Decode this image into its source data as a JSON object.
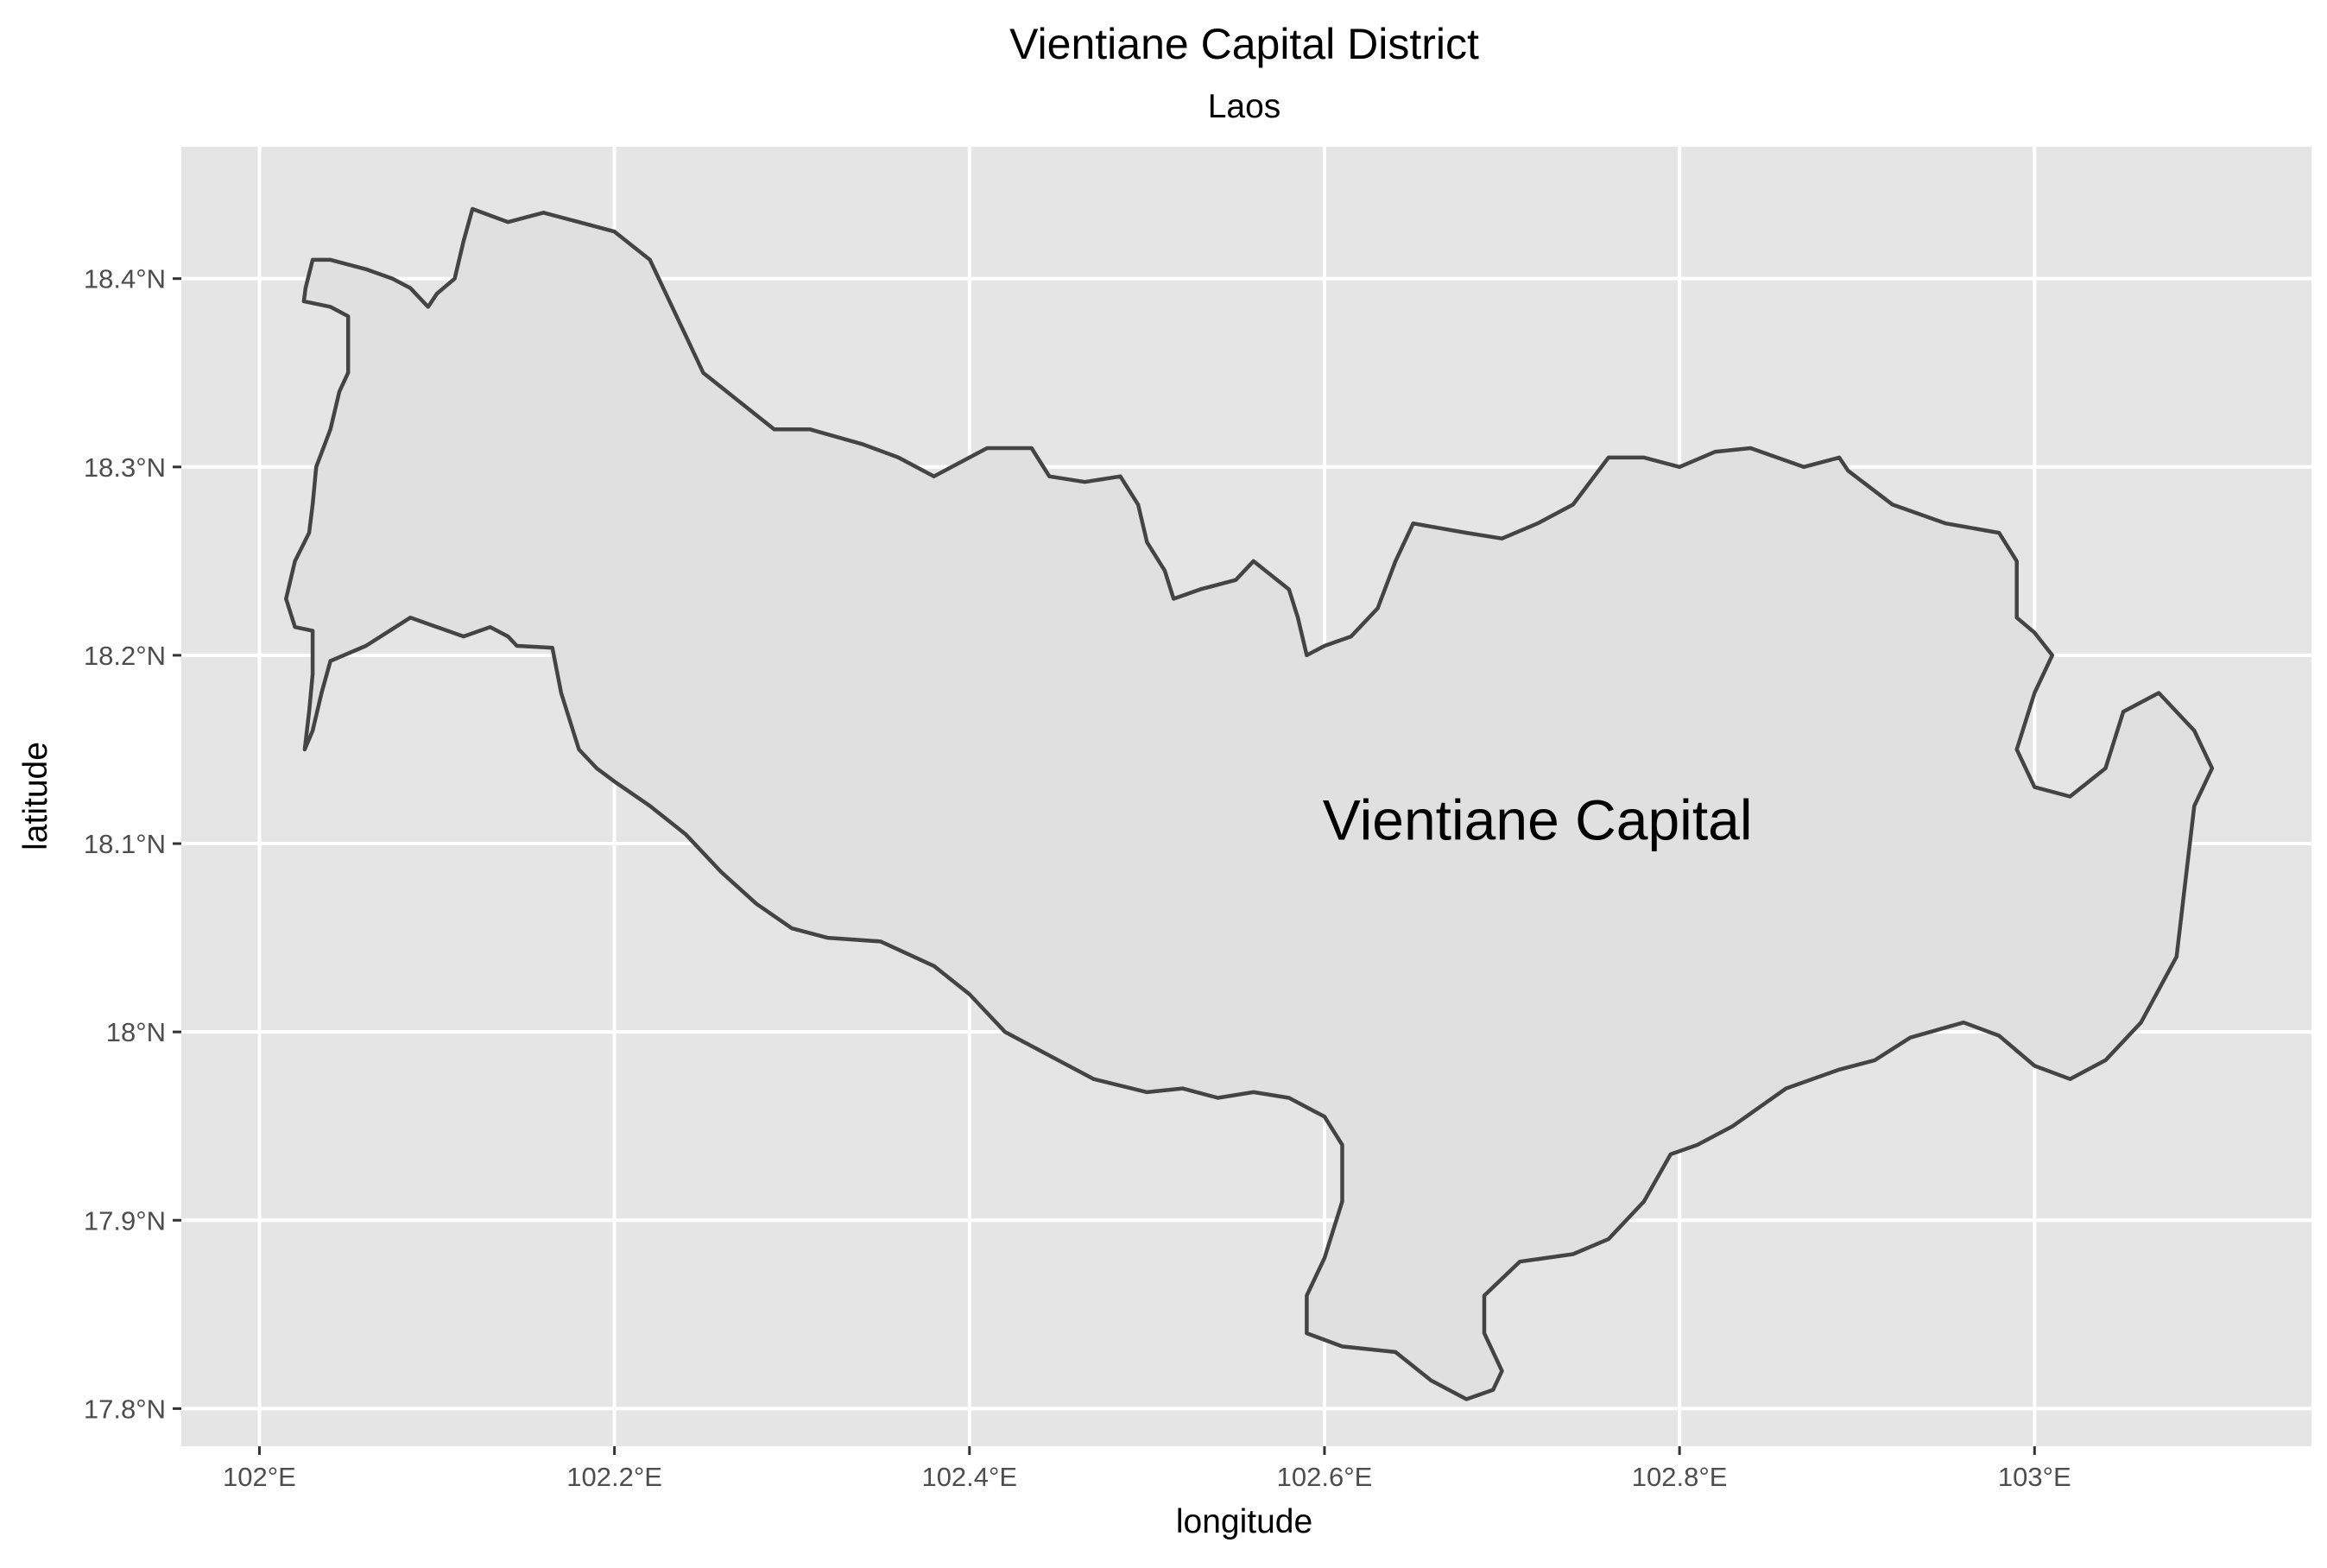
{
  "map": {
    "title": "Vientiane Capital District",
    "subtitle": "Laos",
    "x_axis_label": "longitude",
    "y_axis_label": "latitude",
    "panel_background": "#e5e5e5",
    "grid_color": "#ffffff",
    "region": {
      "label": "Vientiane Capital",
      "fill": "#e0e0e0",
      "stroke": "#444444",
      "label_position": [
        102.72,
        18.11
      ],
      "boundary": [
        [
          102.0255,
          18.15
        ],
        [
          102.03,
          18.16
        ],
        [
          102.035,
          18.18
        ],
        [
          102.04,
          18.197
        ],
        [
          102.06,
          18.205
        ],
        [
          102.085,
          18.22
        ],
        [
          102.1,
          18.215
        ],
        [
          102.115,
          18.21
        ],
        [
          102.13,
          18.215
        ],
        [
          102.14,
          18.21
        ],
        [
          102.145,
          18.205
        ],
        [
          102.165,
          18.204
        ],
        [
          102.17,
          18.18
        ],
        [
          102.18,
          18.15
        ],
        [
          102.19,
          18.14
        ],
        [
          102.2,
          18.133
        ],
        [
          102.22,
          18.12
        ],
        [
          102.24,
          18.105
        ],
        [
          102.26,
          18.085
        ],
        [
          102.28,
          18.068
        ],
        [
          102.3,
          18.055
        ],
        [
          102.32,
          18.05
        ],
        [
          102.35,
          18.048
        ],
        [
          102.38,
          18.035
        ],
        [
          102.4,
          18.02
        ],
        [
          102.42,
          18.0
        ],
        [
          102.44,
          17.99
        ],
        [
          102.47,
          17.975
        ],
        [
          102.5,
          17.968
        ],
        [
          102.52,
          17.97
        ],
        [
          102.54,
          17.965
        ],
        [
          102.56,
          17.968
        ],
        [
          102.58,
          17.965
        ],
        [
          102.6,
          17.955
        ],
        [
          102.61,
          17.94
        ],
        [
          102.61,
          17.91
        ],
        [
          102.6,
          17.88
        ],
        [
          102.59,
          17.86
        ],
        [
          102.59,
          17.84
        ],
        [
          102.61,
          17.833
        ],
        [
          102.64,
          17.83
        ],
        [
          102.66,
          17.815
        ],
        [
          102.68,
          17.805
        ],
        [
          102.695,
          17.81
        ],
        [
          102.7,
          17.82
        ],
        [
          102.69,
          17.84
        ],
        [
          102.69,
          17.86
        ],
        [
          102.71,
          17.878
        ],
        [
          102.74,
          17.882
        ],
        [
          102.76,
          17.89
        ],
        [
          102.78,
          17.91
        ],
        [
          102.795,
          17.935
        ],
        [
          102.81,
          17.94
        ],
        [
          102.83,
          17.95
        ],
        [
          102.86,
          17.97
        ],
        [
          102.89,
          17.98
        ],
        [
          102.91,
          17.985
        ],
        [
          102.93,
          17.997
        ],
        [
          102.96,
          18.005
        ],
        [
          102.98,
          17.998
        ],
        [
          103.0,
          17.982
        ],
        [
          103.02,
          17.975
        ],
        [
          103.04,
          17.985
        ],
        [
          103.06,
          18.005
        ],
        [
          103.08,
          18.04
        ],
        [
          103.085,
          18.08
        ],
        [
          103.09,
          18.12
        ],
        [
          103.1,
          18.14
        ],
        [
          103.09,
          18.16
        ],
        [
          103.07,
          18.18
        ],
        [
          103.05,
          18.17
        ],
        [
          103.04,
          18.14
        ],
        [
          103.02,
          18.125
        ],
        [
          103.0,
          18.13
        ],
        [
          102.99,
          18.15
        ],
        [
          103.0,
          18.18
        ],
        [
          103.01,
          18.2
        ],
        [
          103.0,
          18.212
        ],
        [
          102.99,
          18.22
        ],
        [
          102.99,
          18.25
        ],
        [
          102.98,
          18.265
        ],
        [
          102.95,
          18.27
        ],
        [
          102.92,
          18.28
        ],
        [
          102.895,
          18.298
        ],
        [
          102.89,
          18.305
        ],
        [
          102.87,
          18.3
        ],
        [
          102.84,
          18.31
        ],
        [
          102.82,
          18.308
        ],
        [
          102.8,
          18.3
        ],
        [
          102.78,
          18.305
        ],
        [
          102.76,
          18.305
        ],
        [
          102.74,
          18.28
        ],
        [
          102.72,
          18.27
        ],
        [
          102.7,
          18.262
        ],
        [
          102.68,
          18.265
        ],
        [
          102.65,
          18.27
        ],
        [
          102.64,
          18.25
        ],
        [
          102.63,
          18.225
        ],
        [
          102.615,
          18.21
        ],
        [
          102.6,
          18.205
        ],
        [
          102.59,
          18.2
        ],
        [
          102.585,
          18.22
        ],
        [
          102.58,
          18.235
        ],
        [
          102.56,
          18.25
        ],
        [
          102.55,
          18.24
        ],
        [
          102.53,
          18.235
        ],
        [
          102.515,
          18.23
        ],
        [
          102.51,
          18.245
        ],
        [
          102.5,
          18.26
        ],
        [
          102.495,
          18.28
        ],
        [
          102.485,
          18.295
        ],
        [
          102.465,
          18.292
        ],
        [
          102.445,
          18.295
        ],
        [
          102.435,
          18.31
        ],
        [
          102.41,
          18.31
        ],
        [
          102.39,
          18.3
        ],
        [
          102.38,
          18.295
        ],
        [
          102.36,
          18.305
        ],
        [
          102.34,
          18.312
        ],
        [
          102.31,
          18.32
        ],
        [
          102.29,
          18.32
        ],
        [
          102.27,
          18.335
        ],
        [
          102.25,
          18.35
        ],
        [
          102.24,
          18.37
        ],
        [
          102.22,
          18.41
        ],
        [
          102.2,
          18.425
        ],
        [
          102.18,
          18.43
        ],
        [
          102.16,
          18.435
        ],
        [
          102.14,
          18.43
        ],
        [
          102.12,
          18.437
        ],
        [
          102.115,
          18.42
        ],
        [
          102.11,
          18.4
        ],
        [
          102.1,
          18.392
        ],
        [
          102.095,
          18.385
        ],
        [
          102.085,
          18.395
        ],
        [
          102.075,
          18.4
        ],
        [
          102.06,
          18.405
        ],
        [
          102.04,
          18.41
        ],
        [
          102.03,
          18.41
        ],
        [
          102.026,
          18.395
        ],
        [
          102.025,
          18.388
        ],
        [
          102.04,
          18.385
        ],
        [
          102.05,
          18.38
        ],
        [
          102.05,
          18.368
        ],
        [
          102.05,
          18.35
        ],
        [
          102.045,
          18.34
        ],
        [
          102.04,
          18.32
        ],
        [
          102.032,
          18.3
        ],
        [
          102.03,
          18.28
        ],
        [
          102.028,
          18.265
        ],
        [
          102.02,
          18.25
        ],
        [
          102.015,
          18.23
        ],
        [
          102.02,
          18.215
        ],
        [
          102.03,
          18.213
        ],
        [
          102.03,
          18.19
        ],
        [
          102.028,
          18.17
        ]
      ]
    },
    "x_ticks": [
      {
        "value": 102.0,
        "label": "102°E"
      },
      {
        "value": 102.2,
        "label": "102.2°E"
      },
      {
        "value": 102.4,
        "label": "102.4°E"
      },
      {
        "value": 102.6,
        "label": "102.6°E"
      },
      {
        "value": 102.8,
        "label": "102.8°E"
      },
      {
        "value": 103.0,
        "label": "103°E"
      }
    ],
    "y_ticks": [
      {
        "value": 17.8,
        "label": "17.8°N"
      },
      {
        "value": 17.9,
        "label": "17.9°N"
      },
      {
        "value": 18.0,
        "label": "18°N"
      },
      {
        "value": 18.1,
        "label": "18.1°N"
      },
      {
        "value": 18.2,
        "label": "18.2°N"
      },
      {
        "value": 18.3,
        "label": "18.3°N"
      },
      {
        "value": 18.4,
        "label": "18.4°N"
      }
    ],
    "x_range": [
      101.956,
      103.156
    ],
    "y_range": [
      17.78,
      18.47
    ]
  }
}
